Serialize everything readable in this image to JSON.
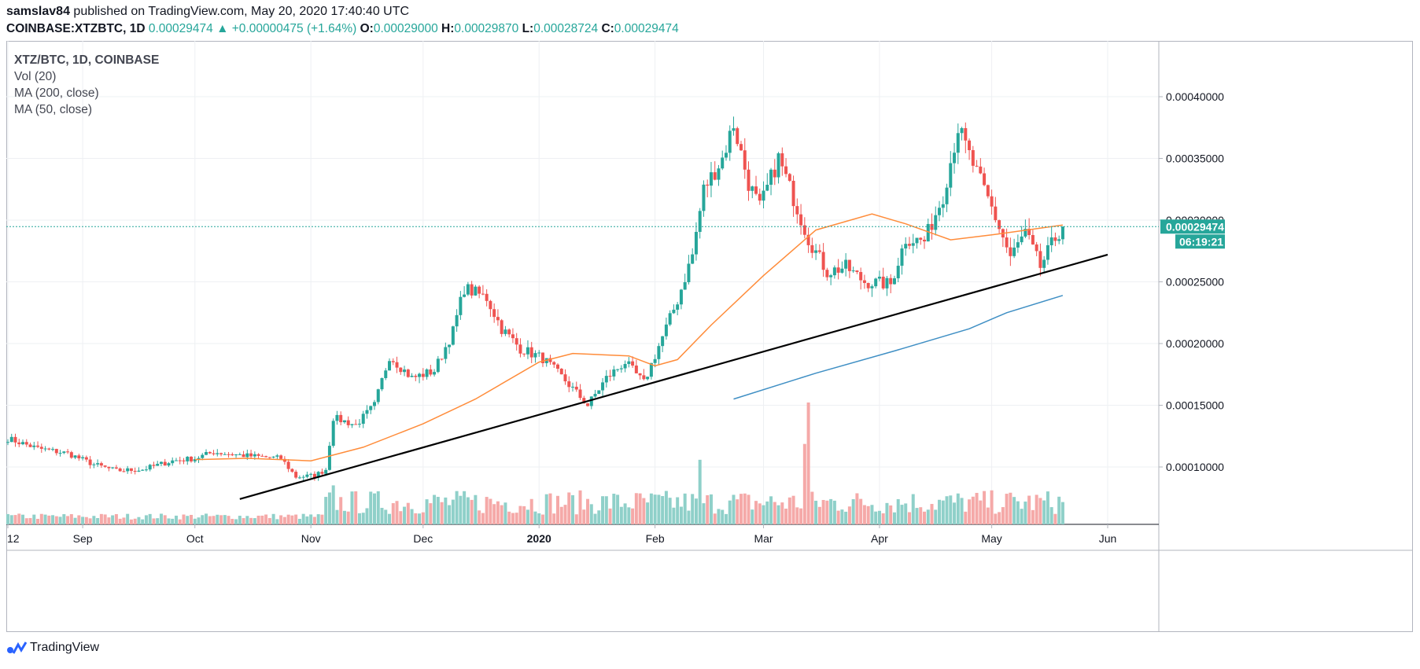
{
  "header": {
    "author": "samslav84",
    "published_text": " published on TradingView.com, May 20, 2020 17:40:40 UTC",
    "symbol_line": "COINBASE:XTZBTC, 1D",
    "last": "0.00029474",
    "change": "+0.00000475 (+1.64%)",
    "open_label": "O:",
    "open": "0.00029000",
    "high_label": "H:",
    "high": "0.00029870",
    "low_label": "L:",
    "low": "0.00028724",
    "close_label": "C:",
    "close": "0.00029474"
  },
  "legend": {
    "symbol": "XTZ/BTC, 1D, COINBASE",
    "items": [
      "Vol (20)",
      "MA (200, close)",
      "MA (50, close)"
    ]
  },
  "price_scale": {
    "current_price": "0.00029474",
    "countdown": "06:19:21"
  },
  "footer": {
    "brand": "TradingView"
  },
  "colors": {
    "up": "#26a69a",
    "down": "#ef5350",
    "vol_up": "#8fd0c9",
    "vol_down": "#f5a9a8",
    "ma50": "#ff8c3a",
    "ma200": "#3f8fc4",
    "trendline": "#000000",
    "price_line": "#26a69a"
  },
  "chart_data": {
    "type": "candlestick",
    "title": "XTZ/BTC, 1D, COINBASE",
    "ylim": [
      4e-05,
      0.00043
    ],
    "y_ticks": [
      "0.00010000",
      "0.00015000",
      "0.00020000",
      "0.00025000",
      "0.00030000",
      "0.00035000",
      "0.00040000"
    ],
    "y_tick_values": [
      0.0001,
      0.00015,
      0.0002,
      0.00025,
      0.0003,
      0.00035,
      0.0004
    ],
    "x_ticks": [
      {
        "label": "12",
        "date": "2019-08-12"
      },
      {
        "label": "Sep",
        "date": "2019-09-01"
      },
      {
        "label": "Oct",
        "date": "2019-10-01"
      },
      {
        "label": "Nov",
        "date": "2019-11-01"
      },
      {
        "label": "Dec",
        "date": "2019-12-01"
      },
      {
        "label": "2020",
        "date": "2020-01-01"
      },
      {
        "label": "Feb",
        "date": "2020-02-01"
      },
      {
        "label": "Mar",
        "date": "2020-03-01"
      },
      {
        "label": "Apr",
        "date": "2020-04-01"
      },
      {
        "label": "May",
        "date": "2020-05-01"
      },
      {
        "label": "Jun",
        "date": "2020-06-01"
      }
    ],
    "start_date": "2019-08-12",
    "end_date": "2020-05-20",
    "close_anchors": [
      [
        "2019-08-12",
        0.000123
      ],
      [
        "2019-08-20",
        0.000115
      ],
      [
        "2019-08-28",
        0.000111
      ],
      [
        "2019-09-04",
        0.000102
      ],
      [
        "2019-09-10",
        9.7e-05
      ],
      [
        "2019-09-17",
        9.8e-05
      ],
      [
        "2019-09-25",
        0.000105
      ],
      [
        "2019-10-01",
        0.000107
      ],
      [
        "2019-10-06",
        0.000112
      ],
      [
        "2019-10-15",
        0.000109
      ],
      [
        "2019-10-24",
        0.000107
      ],
      [
        "2019-10-28",
        9.2e-05
      ],
      [
        "2019-11-02",
        9.3e-05
      ],
      [
        "2019-11-05",
        9.8e-05
      ],
      [
        "2019-11-07",
        0.00014
      ],
      [
        "2019-11-13",
        0.000134
      ],
      [
        "2019-11-18",
        0.00015
      ],
      [
        "2019-11-22",
        0.00019
      ],
      [
        "2019-11-28",
        0.000172
      ],
      [
        "2019-12-04",
        0.000178
      ],
      [
        "2019-12-09",
        0.00021
      ],
      [
        "2019-12-12",
        0.000245
      ],
      [
        "2019-12-18",
        0.000237
      ],
      [
        "2019-12-22",
        0.000212
      ],
      [
        "2019-12-27",
        0.000196
      ],
      [
        "2020-01-02",
        0.000188
      ],
      [
        "2020-01-08",
        0.00017
      ],
      [
        "2020-01-14",
        0.00015
      ],
      [
        "2020-01-19",
        0.000172
      ],
      [
        "2020-01-24",
        0.000185
      ],
      [
        "2020-01-29",
        0.000168
      ],
      [
        "2020-02-02",
        0.000198
      ],
      [
        "2020-02-07",
        0.000235
      ],
      [
        "2020-02-11",
        0.000272
      ],
      [
        "2020-02-14",
        0.000325
      ],
      [
        "2020-02-19",
        0.00035
      ],
      [
        "2020-02-22",
        0.000378
      ],
      [
        "2020-02-26",
        0.00033
      ],
      [
        "2020-02-29",
        0.00031
      ],
      [
        "2020-03-05",
        0.00035
      ],
      [
        "2020-03-09",
        0.000318
      ],
      [
        "2020-03-13",
        0.000285
      ],
      [
        "2020-03-18",
        0.000258
      ],
      [
        "2020-03-23",
        0.000262
      ],
      [
        "2020-03-28",
        0.00025
      ],
      [
        "2020-04-04",
        0.000248
      ],
      [
        "2020-04-08",
        0.000285
      ],
      [
        "2020-04-13",
        0.000283
      ],
      [
        "2020-04-18",
        0.00032
      ],
      [
        "2020-04-22",
        0.000375
      ],
      [
        "2020-04-26",
        0.000345
      ],
      [
        "2020-05-01",
        0.00031
      ],
      [
        "2020-05-06",
        0.00027
      ],
      [
        "2020-05-10",
        0.00029
      ],
      [
        "2020-05-14",
        0.000262
      ],
      [
        "2020-05-17",
        0.00028
      ],
      [
        "2020-05-20",
        0.000295
      ]
    ],
    "ma50": [
      [
        "2019-10-01",
        0.000106
      ],
      [
        "2019-10-15",
        0.000107
      ],
      [
        "2019-11-01",
        0.000105
      ],
      [
        "2019-11-15",
        0.000116
      ],
      [
        "2019-12-01",
        0.000135
      ],
      [
        "2019-12-15",
        0.000155
      ],
      [
        "2020-01-01",
        0.000185
      ],
      [
        "2020-01-10",
        0.000192
      ],
      [
        "2020-01-25",
        0.00019
      ],
      [
        "2020-02-01",
        0.000182
      ],
      [
        "2020-02-07",
        0.000187
      ],
      [
        "2020-02-16",
        0.000215
      ],
      [
        "2020-03-01",
        0.000255
      ],
      [
        "2020-03-15",
        0.000292
      ],
      [
        "2020-03-30",
        0.000305
      ],
      [
        "2020-04-08",
        0.000297
      ],
      [
        "2020-04-20",
        0.000284
      ],
      [
        "2020-05-01",
        0.000288
      ],
      [
        "2020-05-20",
        0.000296
      ]
    ],
    "ma200": [
      [
        "2020-02-22",
        0.000155
      ],
      [
        "2020-03-15",
        0.000176
      ],
      [
        "2020-04-05",
        0.000194
      ],
      [
        "2020-04-25",
        0.000212
      ],
      [
        "2020-05-05",
        0.000225
      ],
      [
        "2020-05-20",
        0.000239
      ]
    ],
    "trendline": [
      [
        "2019-10-13",
        7.4e-05
      ],
      [
        "2020-06-01",
        0.000272
      ]
    ],
    "volume_spikes": [
      {
        "date": "2019-11-07",
        "rel": 0.32
      },
      {
        "date": "2020-02-13",
        "rel": 0.53
      },
      {
        "date": "2020-03-12",
        "rel": 0.66
      },
      {
        "date": "2020-03-13",
        "rel": 1.0
      }
    ]
  }
}
